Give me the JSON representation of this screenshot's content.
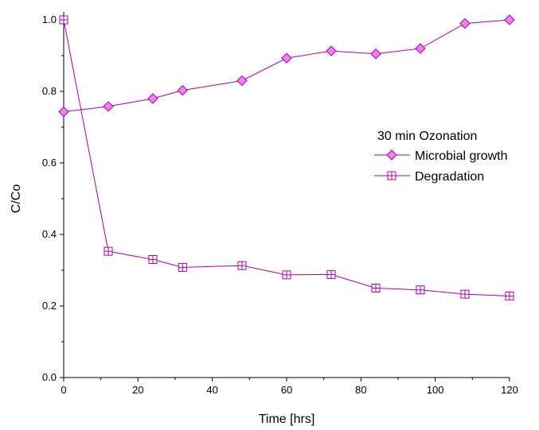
{
  "chart_data": {
    "type": "line",
    "xlabel": "Time [hrs]",
    "ylabel": "C/Co",
    "xlim": [
      0,
      120
    ],
    "ylim": [
      0,
      1.0
    ],
    "xticks": [
      0,
      20,
      40,
      60,
      80,
      100,
      120
    ],
    "yticks": [
      0.0,
      0.2,
      0.4,
      0.6,
      0.8,
      1.0
    ],
    "xtick_labels": [
      "0",
      "20",
      "40",
      "60",
      "80",
      "100",
      "120"
    ],
    "ytick_labels": [
      "0.0",
      "0.2",
      "0.4",
      "0.6",
      "0.8",
      "1.0"
    ],
    "grid": false,
    "legend": {
      "title": "30 min Ozonation",
      "position": "right"
    },
    "series": [
      {
        "name": "Microbial growth",
        "marker": "diamond",
        "color": "#aa00aa",
        "fill": "#ee82ee",
        "x": [
          0,
          12,
          24,
          32,
          48,
          60,
          72,
          84,
          96,
          108,
          120
        ],
        "y": [
          0.743,
          0.758,
          0.78,
          0.803,
          0.83,
          0.893,
          0.913,
          0.905,
          0.92,
          0.99,
          1.0
        ]
      },
      {
        "name": "Degradation",
        "marker": "square-plus",
        "color": "#aa00aa",
        "fill": "#ffffff",
        "x": [
          0,
          12,
          24,
          32,
          48,
          60,
          72,
          84,
          96,
          108,
          120
        ],
        "y": [
          1.0,
          0.353,
          0.33,
          0.308,
          0.313,
          0.287,
          0.288,
          0.25,
          0.245,
          0.233,
          0.228
        ]
      }
    ]
  }
}
